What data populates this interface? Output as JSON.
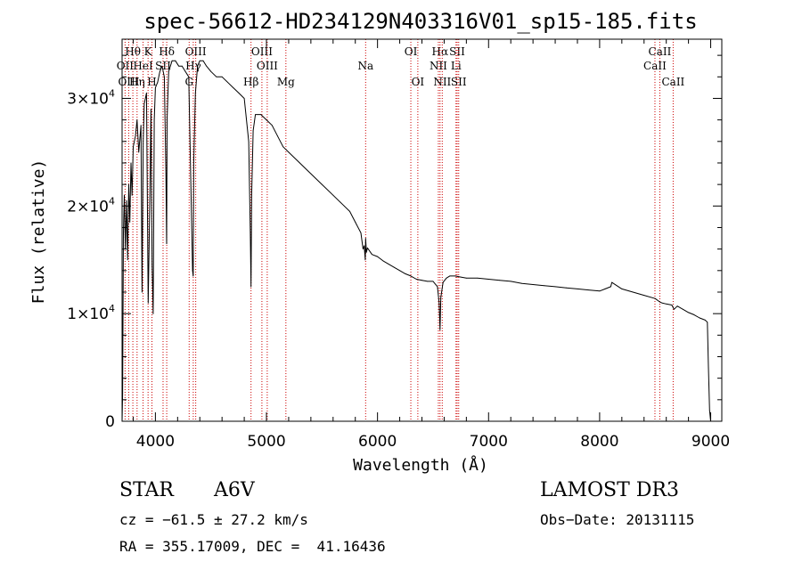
{
  "chart_data": {
    "type": "line",
    "title": "spec-56612-HD234129N403316V01_sp15-185.fits",
    "xlabel": "Wavelength (Å)",
    "ylabel": "Flux (relative)",
    "xlim": [
      3700,
      9100
    ],
    "ylim": [
      0,
      35500
    ],
    "x_ticks": [
      4000,
      5000,
      6000,
      7000,
      8000,
      9000
    ],
    "x_tick_labels": [
      "4000",
      "5000",
      "6000",
      "7000",
      "8000",
      "9000"
    ],
    "y_ticks": [
      0,
      10000,
      20000,
      30000
    ],
    "y_tick_labels": [
      {
        "mantissa": "0",
        "exp": ""
      },
      {
        "mantissa": "1×10",
        "exp": "4"
      },
      {
        "mantissa": "2×10",
        "exp": "4"
      },
      {
        "mantissa": "3×10",
        "exp": "4"
      }
    ],
    "series": [
      {
        "name": "spectrum",
        "x": [
          3700,
          3705,
          3712,
          3720,
          3730,
          3740,
          3750,
          3760,
          3770,
          3780,
          3790,
          3800,
          3820,
          3835,
          3850,
          3870,
          3880,
          3890,
          3900,
          3920,
          3935,
          3950,
          3960,
          3970,
          3980,
          3990,
          4000,
          4020,
          4040,
          4060,
          4080,
          4095,
          4101,
          4105,
          4120,
          4150,
          4180,
          4210,
          4240,
          4270,
          4300,
          4320,
          4335,
          4340,
          4345,
          4360,
          4380,
          4400,
          4430,
          4460,
          4500,
          4550,
          4600,
          4650,
          4700,
          4750,
          4800,
          4840,
          4855,
          4861,
          4867,
          4880,
          4900,
          4950,
          5000,
          5050,
          5100,
          5150,
          5200,
          5300,
          5400,
          5500,
          5600,
          5700,
          5750,
          5800,
          5850,
          5870,
          5880,
          5890,
          5893,
          5900,
          5910,
          5950,
          6000,
          6050,
          6100,
          6150,
          6200,
          6250,
          6300,
          6350,
          6400,
          6450,
          6500,
          6540,
          6555,
          6563,
          6570,
          6590,
          6620,
          6650,
          6700,
          6750,
          6800,
          6900,
          7000,
          7100,
          7200,
          7300,
          7400,
          7500,
          7600,
          7700,
          7800,
          7900,
          8000,
          8050,
          8100,
          8110,
          8200,
          8300,
          8400,
          8500,
          8540,
          8560,
          8600,
          8650,
          8670,
          8700,
          8750,
          8800,
          8850,
          8900,
          8950,
          8970,
          8980,
          8990,
          9000
        ],
        "y": [
          0,
          2500,
          17500,
          21000,
          16000,
          20500,
          15000,
          22000,
          18500,
          24000,
          21000,
          25500,
          26500,
          28000,
          25000,
          27500,
          12000,
          26000,
          29500,
          30500,
          11000,
          21000,
          29000,
          14500,
          10000,
          28000,
          31000,
          31500,
          32500,
          33000,
          32000,
          23000,
          16500,
          28000,
          32500,
          33500,
          33500,
          33000,
          33000,
          32500,
          32000,
          21500,
          14000,
          13500,
          24000,
          30500,
          33000,
          33500,
          33500,
          33000,
          32500,
          32000,
          32000,
          31500,
          31000,
          30500,
          30000,
          26000,
          17500,
          12500,
          21000,
          27000,
          28500,
          28500,
          28000,
          27500,
          26500,
          25500,
          25000,
          24000,
          23000,
          22000,
          21000,
          20000,
          19500,
          18500,
          17500,
          16000,
          16300,
          15000,
          17000,
          15700,
          16100,
          15500,
          15300,
          14900,
          14600,
          14300,
          14000,
          13700,
          13500,
          13200,
          13100,
          13000,
          13000,
          12500,
          11000,
          8500,
          11500,
          12900,
          13300,
          13500,
          13500,
          13400,
          13300,
          13300,
          13200,
          13100,
          13000,
          12800,
          12700,
          12600,
          12500,
          12400,
          12300,
          12200,
          12100,
          12300,
          12500,
          12900,
          12300,
          12000,
          11700,
          11400,
          11100,
          11000,
          10900,
          10800,
          10400,
          10700,
          10400,
          10100,
          9900,
          9600,
          9400,
          9200,
          5000,
          1000,
          0
        ]
      }
    ],
    "line_markers": [
      {
        "label": "Hθ",
        "x": 3797,
        "row": 1
      },
      {
        "label": "OII",
        "x": 3727,
        "row": 2
      },
      {
        "label": "OIII",
        "x": 3760,
        "row": 3
      },
      {
        "label": "HeI",
        "x": 3889,
        "row": 2
      },
      {
        "label": "Hη",
        "x": 3835,
        "row": 3
      },
      {
        "label": "K",
        "x": 3934,
        "row": 1
      },
      {
        "label": "H",
        "x": 3969,
        "row": 3
      },
      {
        "label": "Hδ",
        "x": 4102,
        "row": 1
      },
      {
        "label": "SII",
        "x": 4069,
        "row": 2
      },
      {
        "label": "OIII",
        "x": 4363,
        "row": 1
      },
      {
        "label": "Hγ",
        "x": 4341,
        "row": 2
      },
      {
        "label": "G",
        "x": 4304,
        "row": 3
      },
      {
        "label": "Hβ",
        "x": 4861,
        "row": 3
      },
      {
        "label": "OIII",
        "x": 4959,
        "row": 1
      },
      {
        "label": "OIII",
        "x": 5007,
        "row": 2
      },
      {
        "label": "Mg",
        "x": 5175,
        "row": 3
      },
      {
        "label": "Na",
        "x": 5893,
        "row": 2
      },
      {
        "label": "OI",
        "x": 6300,
        "row": 1
      },
      {
        "label": "OI",
        "x": 6363,
        "row": 3
      },
      {
        "label": "Hα",
        "x": 6563,
        "row": 1
      },
      {
        "label": "NII",
        "x": 6548,
        "row": 2
      },
      {
        "label": "NII",
        "x": 6583,
        "row": 3
      },
      {
        "label": "SII",
        "x": 6717,
        "row": 1
      },
      {
        "label": "Li",
        "x": 6707,
        "row": 2
      },
      {
        "label": "SII",
        "x": 6731,
        "row": 3
      },
      {
        "label": "CaII",
        "x": 8542,
        "row": 1
      },
      {
        "label": "CaII",
        "x": 8498,
        "row": 2
      },
      {
        "label": "CaII",
        "x": 8662,
        "row": 3
      }
    ],
    "grid": false,
    "legend": "none"
  },
  "info": {
    "object_type": "STAR",
    "subclass": "A6V",
    "survey": "LAMOST DR3",
    "cz": "cz = −61.5 ± 27.2 km/s",
    "obs_date": "Obs−Date: 20131115",
    "coords": "RA = 355.17009, DEC =  41.16436"
  },
  "colors": {
    "spectrum": "#000000",
    "markers": "#cc0000",
    "axes": "#000000"
  }
}
